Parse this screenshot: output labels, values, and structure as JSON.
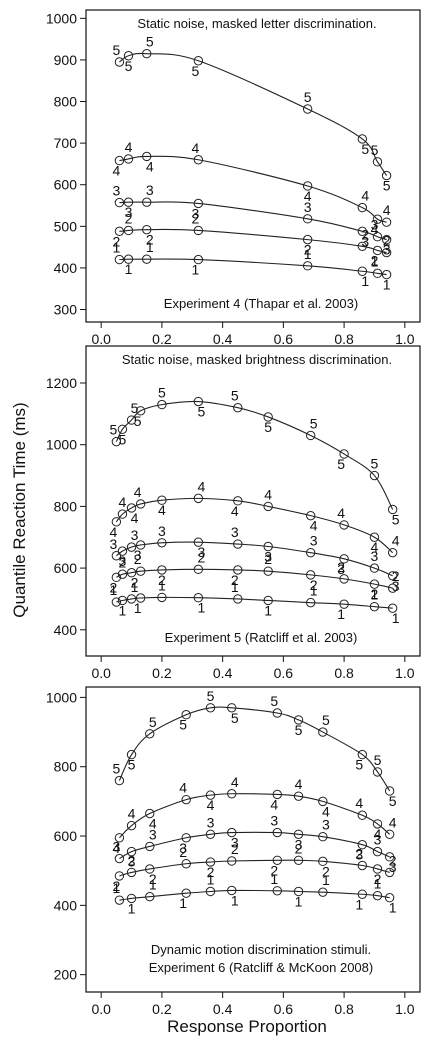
{
  "figure": {
    "xlabel": "Response Proportion",
    "ylabel": "Quantile Reaction Time (ms)"
  },
  "chart_data": [
    {
      "type": "line",
      "panel": "top",
      "title": "Static noise, masked letter discrimination.",
      "caption": "Experiment 4 (Thapar et al. 2003)",
      "xlim": [
        -0.05,
        1.05
      ],
      "ylim": [
        270,
        1020
      ],
      "xticks": [
        "0.0",
        "0.2",
        "0.4",
        "0.6",
        "0.8",
        "1.0"
      ],
      "yticks": [
        "300",
        "400",
        "500",
        "600",
        "700",
        "800",
        "900",
        "1000"
      ],
      "series": [
        {
          "name": "1",
          "x": [
            0.06,
            0.09,
            0.15,
            0.32,
            0.68,
            0.86,
            0.91,
            0.94
          ],
          "y": [
            420,
            421,
            421,
            420,
            405,
            392,
            387,
            384
          ]
        },
        {
          "name": "2",
          "x": [
            0.06,
            0.09,
            0.15,
            0.32,
            0.68,
            0.86,
            0.91,
            0.94
          ],
          "y": [
            488,
            490,
            492,
            490,
            468,
            452,
            442,
            437
          ]
        },
        {
          "name": "3",
          "x": [
            0.06,
            0.09,
            0.15,
            0.32,
            0.68,
            0.86,
            0.91,
            0.94
          ],
          "y": [
            557,
            558,
            558,
            555,
            518,
            488,
            475,
            468
          ]
        },
        {
          "name": "4",
          "x": [
            0.06,
            0.09,
            0.15,
            0.32,
            0.68,
            0.86,
            0.91,
            0.94
          ],
          "y": [
            658,
            662,
            668,
            660,
            597,
            545,
            517,
            510
          ]
        },
        {
          "name": "5",
          "x": [
            0.06,
            0.09,
            0.15,
            0.32,
            0.68,
            0.86,
            0.91,
            0.94
          ],
          "y": [
            895,
            910,
            915,
            898,
            782,
            710,
            655,
            622
          ]
        }
      ]
    },
    {
      "type": "line",
      "panel": "middle",
      "title": "Static noise, masked brightness discrimination.",
      "caption": "Experiment 5 (Ratcliff et al. 2003)",
      "xlim": [
        -0.05,
        1.05
      ],
      "ylim": [
        315,
        1320
      ],
      "xticks": [
        "0.0",
        "0.2",
        "0.4",
        "0.6",
        "0.8",
        "1.0"
      ],
      "yticks": [
        "400",
        "600",
        "800",
        "1000",
        "1200"
      ],
      "series": [
        {
          "name": "1",
          "x": [
            0.05,
            0.07,
            0.1,
            0.13,
            0.2,
            0.32,
            0.45,
            0.55,
            0.69,
            0.8,
            0.9,
            0.96
          ],
          "y": [
            490,
            495,
            500,
            503,
            505,
            504,
            500,
            495,
            488,
            483,
            475,
            470
          ]
        },
        {
          "name": "2",
          "x": [
            0.05,
            0.07,
            0.1,
            0.13,
            0.2,
            0.32,
            0.45,
            0.55,
            0.69,
            0.8,
            0.9,
            0.96
          ],
          "y": [
            570,
            580,
            585,
            590,
            594,
            596,
            594,
            590,
            578,
            565,
            548,
            535
          ]
        },
        {
          "name": "3",
          "x": [
            0.05,
            0.07,
            0.1,
            0.13,
            0.2,
            0.32,
            0.45,
            0.55,
            0.69,
            0.8,
            0.9,
            0.96
          ],
          "y": [
            640,
            655,
            668,
            675,
            682,
            684,
            678,
            670,
            650,
            630,
            600,
            575
          ]
        },
        {
          "name": "4",
          "x": [
            0.05,
            0.07,
            0.1,
            0.13,
            0.2,
            0.32,
            0.45,
            0.55,
            0.69,
            0.8,
            0.9,
            0.96
          ],
          "y": [
            750,
            775,
            795,
            808,
            820,
            826,
            818,
            800,
            770,
            740,
            700,
            650
          ]
        },
        {
          "name": "5",
          "x": [
            0.05,
            0.07,
            0.1,
            0.13,
            0.2,
            0.32,
            0.45,
            0.55,
            0.69,
            0.8,
            0.9,
            0.96
          ],
          "y": [
            1010,
            1050,
            1080,
            1110,
            1130,
            1140,
            1120,
            1090,
            1030,
            970,
            900,
            790
          ]
        }
      ]
    },
    {
      "type": "line",
      "panel": "bottom",
      "title": "",
      "caption_lines": [
        "Dynamic motion discrimination stimuli.",
        "Experiment 6 (Ratcliff & McKoon 2008)"
      ],
      "xlim": [
        -0.05,
        1.05
      ],
      "ylim": [
        150,
        1030
      ],
      "xticks": [
        "0.0",
        "0.2",
        "0.4",
        "0.6",
        "0.8",
        "1.0"
      ],
      "yticks": [
        "200",
        "400",
        "600",
        "800",
        "1000"
      ],
      "series": [
        {
          "name": "1",
          "x": [
            0.06,
            0.1,
            0.16,
            0.28,
            0.36,
            0.43,
            0.58,
            0.65,
            0.73,
            0.86,
            0.91,
            0.95
          ],
          "y": [
            415,
            420,
            425,
            435,
            440,
            443,
            442,
            440,
            438,
            432,
            428,
            422
          ]
        },
        {
          "name": "2",
          "x": [
            0.06,
            0.1,
            0.16,
            0.28,
            0.36,
            0.43,
            0.58,
            0.65,
            0.73,
            0.86,
            0.91,
            0.95
          ],
          "y": [
            485,
            495,
            505,
            520,
            525,
            528,
            530,
            530,
            527,
            515,
            505,
            495
          ]
        },
        {
          "name": "3",
          "x": [
            0.06,
            0.1,
            0.16,
            0.28,
            0.36,
            0.43,
            0.58,
            0.65,
            0.73,
            0.86,
            0.91,
            0.95
          ],
          "y": [
            535,
            555,
            570,
            595,
            605,
            610,
            610,
            605,
            598,
            575,
            555,
            540
          ]
        },
        {
          "name": "4",
          "x": [
            0.06,
            0.1,
            0.16,
            0.28,
            0.36,
            0.43,
            0.58,
            0.65,
            0.73,
            0.86,
            0.91,
            0.95
          ],
          "y": [
            595,
            630,
            665,
            705,
            718,
            722,
            720,
            715,
            700,
            660,
            635,
            605
          ]
        },
        {
          "name": "5",
          "x": [
            0.06,
            0.1,
            0.16,
            0.28,
            0.36,
            0.43,
            0.58,
            0.65,
            0.73,
            0.86,
            0.91,
            0.95
          ],
          "y": [
            760,
            835,
            895,
            950,
            970,
            970,
            955,
            935,
            900,
            835,
            785,
            730
          ]
        }
      ]
    }
  ]
}
